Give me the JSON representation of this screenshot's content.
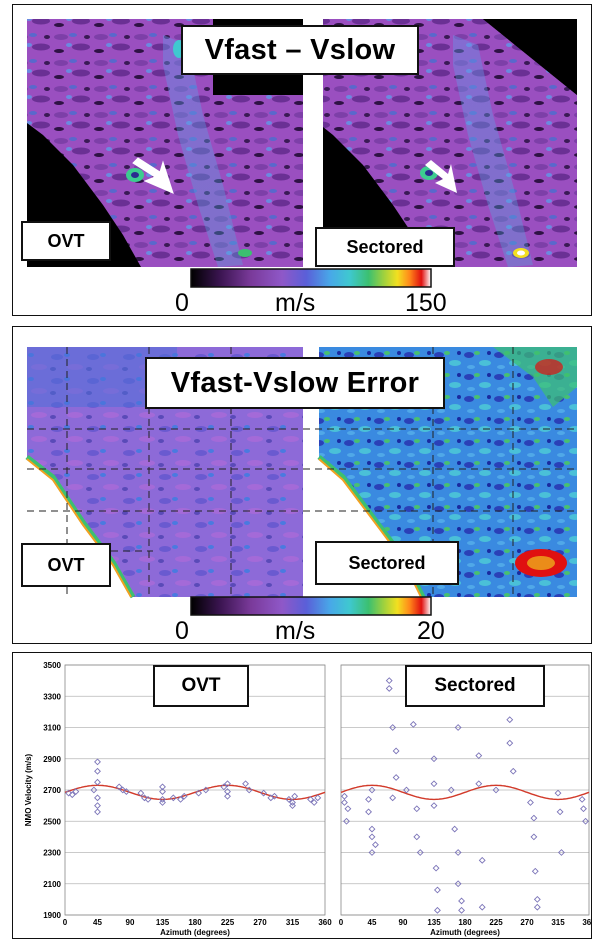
{
  "panel_top": {
    "title": "Vfast – Vslow",
    "left_label": "OVT",
    "right_label": "Sectored",
    "colorbar": {
      "min": "0",
      "unit": "m/s",
      "max": "150"
    }
  },
  "panel_mid": {
    "title": "Vfast-Vslow Error",
    "left_label": "OVT",
    "right_label": "Sectored",
    "colorbar": {
      "min": "0",
      "unit": "m/s",
      "max": "20"
    }
  },
  "colors": {
    "colorbar_stops": [
      "#000000",
      "#3a1450",
      "#7a3a9a",
      "#8f58c8",
      "#5a5fd8",
      "#48a8e8",
      "#3fc8d0",
      "#3cc070",
      "#9ad040",
      "#f2e020",
      "#ff8a1a",
      "#e01010",
      "#ffffff"
    ],
    "fit_curve": "#d23a2a",
    "points": "#7b74b8"
  },
  "chart_data": [
    {
      "type": "scatter",
      "title": "OVT",
      "xlabel": "Azimuth (degrees)",
      "ylabel": "NMO Velocity (m/s)",
      "xlim": [
        0,
        360
      ],
      "ylim": [
        1900,
        3500
      ],
      "xticks": [
        0,
        45,
        90,
        135,
        180,
        225,
        270,
        315,
        360
      ],
      "yticks": [
        1900,
        2100,
        2300,
        2500,
        2700,
        2900,
        3100,
        3300,
        3500
      ],
      "grid": true,
      "points": [
        {
          "x": 5,
          "y": 2680
        },
        {
          "x": 10,
          "y": 2670
        },
        {
          "x": 15,
          "y": 2690
        },
        {
          "x": 40,
          "y": 2700
        },
        {
          "x": 45,
          "y": 2600
        },
        {
          "x": 45,
          "y": 2650
        },
        {
          "x": 45,
          "y": 2750
        },
        {
          "x": 45,
          "y": 2820
        },
        {
          "x": 45,
          "y": 2880
        },
        {
          "x": 45,
          "y": 2560
        },
        {
          "x": 75,
          "y": 2720
        },
        {
          "x": 80,
          "y": 2700
        },
        {
          "x": 85,
          "y": 2690
        },
        {
          "x": 105,
          "y": 2680
        },
        {
          "x": 110,
          "y": 2650
        },
        {
          "x": 115,
          "y": 2640
        },
        {
          "x": 135,
          "y": 2690
        },
        {
          "x": 135,
          "y": 2720
        },
        {
          "x": 135,
          "y": 2640
        },
        {
          "x": 135,
          "y": 2620
        },
        {
          "x": 150,
          "y": 2650
        },
        {
          "x": 160,
          "y": 2640
        },
        {
          "x": 165,
          "y": 2660
        },
        {
          "x": 185,
          "y": 2680
        },
        {
          "x": 195,
          "y": 2700
        },
        {
          "x": 220,
          "y": 2720
        },
        {
          "x": 225,
          "y": 2740
        },
        {
          "x": 225,
          "y": 2690
        },
        {
          "x": 225,
          "y": 2660
        },
        {
          "x": 250,
          "y": 2740
        },
        {
          "x": 255,
          "y": 2700
        },
        {
          "x": 275,
          "y": 2680
        },
        {
          "x": 285,
          "y": 2650
        },
        {
          "x": 290,
          "y": 2660
        },
        {
          "x": 310,
          "y": 2640
        },
        {
          "x": 315,
          "y": 2600
        },
        {
          "x": 315,
          "y": 2620
        },
        {
          "x": 318,
          "y": 2660
        },
        {
          "x": 340,
          "y": 2640
        },
        {
          "x": 345,
          "y": 2620
        },
        {
          "x": 350,
          "y": 2650
        }
      ],
      "fit_curve": {
        "mean": 2685,
        "amplitude": 45,
        "period": 90,
        "phase_deg": 45
      }
    },
    {
      "type": "scatter",
      "title": "Sectored",
      "xlabel": "Azimuth (degrees)",
      "xlim": [
        0,
        360
      ],
      "ylim": [
        1900,
        3500
      ],
      "xticks": [
        0,
        45,
        90,
        135,
        180,
        225,
        270,
        315,
        360
      ],
      "grid": true,
      "points": [
        {
          "x": 5,
          "y": 2660
        },
        {
          "x": 5,
          "y": 2620
        },
        {
          "x": 10,
          "y": 2580
        },
        {
          "x": 8,
          "y": 2500
        },
        {
          "x": 40,
          "y": 2640
        },
        {
          "x": 40,
          "y": 2560
        },
        {
          "x": 45,
          "y": 2700
        },
        {
          "x": 45,
          "y": 2450
        },
        {
          "x": 45,
          "y": 2400
        },
        {
          "x": 45,
          "y": 2300
        },
        {
          "x": 50,
          "y": 2350
        },
        {
          "x": 70,
          "y": 3400
        },
        {
          "x": 70,
          "y": 3350
        },
        {
          "x": 75,
          "y": 3100
        },
        {
          "x": 80,
          "y": 2950
        },
        {
          "x": 80,
          "y": 2780
        },
        {
          "x": 75,
          "y": 2650
        },
        {
          "x": 95,
          "y": 2700
        },
        {
          "x": 105,
          "y": 3120
        },
        {
          "x": 110,
          "y": 2580
        },
        {
          "x": 110,
          "y": 2400
        },
        {
          "x": 115,
          "y": 2300
        },
        {
          "x": 135,
          "y": 2900
        },
        {
          "x": 135,
          "y": 2740
        },
        {
          "x": 135,
          "y": 2600
        },
        {
          "x": 138,
          "y": 2200
        },
        {
          "x": 140,
          "y": 2060
        },
        {
          "x": 140,
          "y": 1930
        },
        {
          "x": 160,
          "y": 2700
        },
        {
          "x": 165,
          "y": 2450
        },
        {
          "x": 170,
          "y": 3100
        },
        {
          "x": 170,
          "y": 2300
        },
        {
          "x": 170,
          "y": 2100
        },
        {
          "x": 175,
          "y": 1990
        },
        {
          "x": 175,
          "y": 1930
        },
        {
          "x": 200,
          "y": 2920
        },
        {
          "x": 200,
          "y": 2740
        },
        {
          "x": 205,
          "y": 2250
        },
        {
          "x": 205,
          "y": 1950
        },
        {
          "x": 225,
          "y": 2700
        },
        {
          "x": 245,
          "y": 3150
        },
        {
          "x": 245,
          "y": 3000
        },
        {
          "x": 250,
          "y": 2820
        },
        {
          "x": 275,
          "y": 2620
        },
        {
          "x": 280,
          "y": 2520
        },
        {
          "x": 280,
          "y": 2400
        },
        {
          "x": 282,
          "y": 2180
        },
        {
          "x": 285,
          "y": 2000
        },
        {
          "x": 285,
          "y": 1950
        },
        {
          "x": 315,
          "y": 2680
        },
        {
          "x": 318,
          "y": 2560
        },
        {
          "x": 320,
          "y": 2300
        },
        {
          "x": 350,
          "y": 2640
        },
        {
          "x": 352,
          "y": 2580
        },
        {
          "x": 355,
          "y": 2500
        }
      ],
      "fit_curve": {
        "mean": 2685,
        "amplitude": 45,
        "period": 90,
        "phase_deg": 45
      }
    }
  ]
}
